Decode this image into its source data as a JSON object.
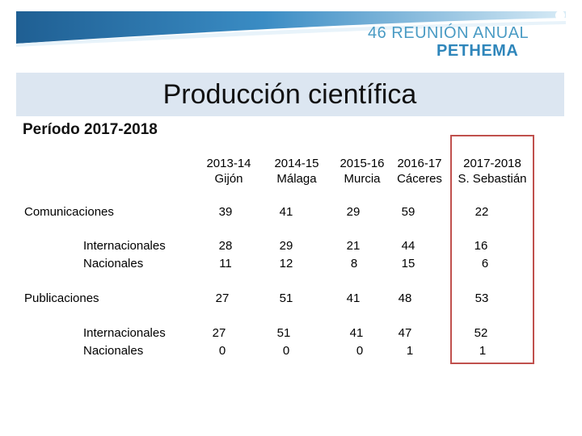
{
  "logo": {
    "edition": "46 REUNIÓN ANUAL",
    "name": "PETHEMA"
  },
  "title": "Producción científica",
  "period": "Período 2017-2018",
  "columns": [
    {
      "years": "2013-14",
      "city": "Gijón"
    },
    {
      "years": "2014-15",
      "city": "Málaga"
    },
    {
      "years": "2015-16",
      "city": "Murcia"
    },
    {
      "years": "2016-17",
      "city": "Cáceres"
    },
    {
      "years": "2017-2018",
      "city": "S. Sebastián"
    }
  ],
  "rows": {
    "comunicaciones": {
      "label": "Comunicaciones",
      "values": [
        "39",
        "41",
        "29",
        "59",
        "22"
      ]
    },
    "com_internacionales": {
      "label": "Internacionales",
      "values": [
        "28",
        "29",
        "21",
        "44",
        "16"
      ]
    },
    "com_nacionales": {
      "label": "Nacionales",
      "values": [
        "11",
        "12",
        "8",
        "15",
        "6"
      ]
    },
    "publicaciones": {
      "label": "Publicaciones",
      "values": [
        "27",
        "51",
        "41",
        "48",
        "53"
      ]
    },
    "pub_internacionales": {
      "label": "Internacionales",
      "values": [
        "27",
        "51",
        "41",
        "47",
        "52"
      ]
    },
    "pub_nacionales": {
      "label": "Nacionales",
      "values": [
        "0",
        "0",
        "0",
        "1",
        "1"
      ]
    }
  },
  "colors": {
    "accent": "#2f86bb",
    "title_band": "#dce6f1",
    "highlight": "#c0504d"
  }
}
